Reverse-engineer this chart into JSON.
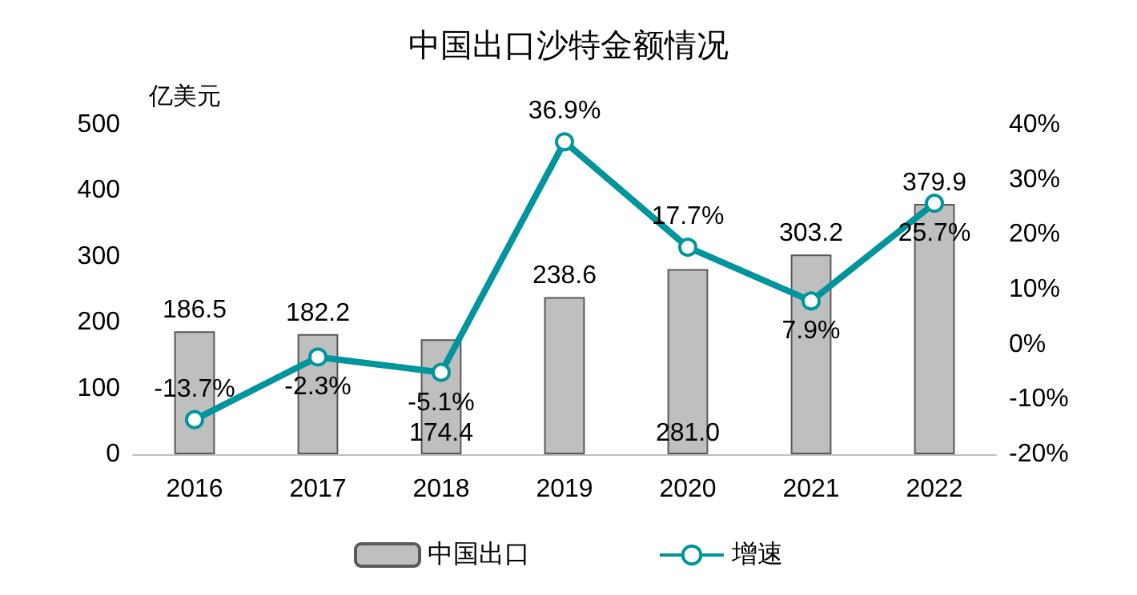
{
  "chart_data": {
    "type": "bar",
    "title": "中国出口沙特金额情况",
    "ylabel": "亿美元",
    "categories": [
      "2016",
      "2017",
      "2018",
      "2019",
      "2020",
      "2021",
      "2022"
    ],
    "series": [
      {
        "name": "中国出口",
        "color": "#bfbfbf",
        "values": [
          186.5,
          182.2,
          174.4,
          238.6,
          281.0,
          303.2,
          379.9
        ],
        "value_labels": [
          "186.5",
          "182.2",
          "174.4",
          "238.6",
          "281.0",
          "303.2",
          "379.9"
        ]
      },
      {
        "name": "增速",
        "type": "line",
        "axis": "y2",
        "color": "#00959d",
        "marker": "circle",
        "values": [
          -13.7,
          -2.3,
          -5.1,
          36.9,
          17.7,
          7.9,
          25.7
        ],
        "value_labels": [
          "-13.7%",
          "-2.3%",
          "-5.1%",
          "36.9%",
          "17.7%",
          "7.9%",
          "25.7%"
        ]
      }
    ],
    "ylim": [
      0,
      500
    ],
    "yticks": [
      0,
      100,
      200,
      300,
      400,
      500
    ],
    "y2lim": [
      -20,
      40
    ],
    "y2ticks": [
      {
        "value": -20,
        "label": "-20%"
      },
      {
        "value": -10,
        "label": "-10%"
      },
      {
        "value": 0,
        "label": "0%"
      },
      {
        "value": 10,
        "label": "10%"
      },
      {
        "value": 20,
        "label": "20%"
      },
      {
        "value": 30,
        "label": "30%"
      },
      {
        "value": 40,
        "label": "40%"
      }
    ],
    "grid": false,
    "legend": "bottom"
  }
}
